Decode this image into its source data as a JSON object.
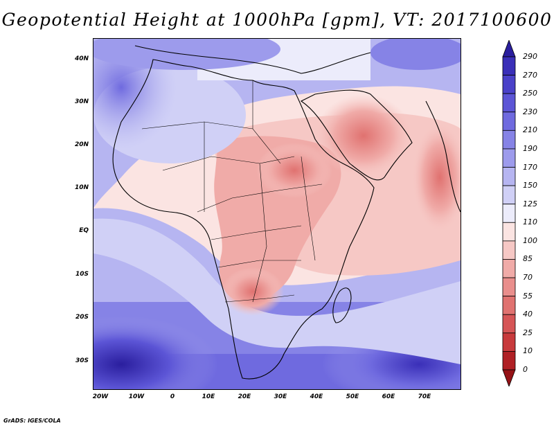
{
  "title": "Geopotential Height at 1000hPa [gpm], VT: 2017100600",
  "footer": "GrADS: IGES/COLA",
  "map": {
    "lon_labels": [
      "20W",
      "10W",
      "0",
      "10E",
      "20E",
      "30E",
      "40E",
      "50E",
      "60E",
      "70E"
    ],
    "lat_labels": [
      "40N",
      "30N",
      "20N",
      "10N",
      "EQ",
      "10S",
      "20S",
      "30S"
    ],
    "lon_range": [
      -22,
      80
    ],
    "lat_range": [
      -37,
      45
    ]
  },
  "colorbar": {
    "levels": [
      "290",
      "270",
      "250",
      "230",
      "210",
      "190",
      "170",
      "150",
      "125",
      "110",
      "100",
      "85",
      "70",
      "55",
      "40",
      "25",
      "10",
      "0"
    ],
    "colors": [
      "#2a1e9e",
      "#3a2fb8",
      "#4a41c9",
      "#5c55d6",
      "#6f6adf",
      "#8683e6",
      "#9d9bec",
      "#b6b5f1",
      "#d0d0f6",
      "#ececfb",
      "#fbe4e2",
      "#f6c8c5",
      "#f0aba8",
      "#e98e8c",
      "#e07270",
      "#d65556",
      "#c83a3c",
      "#b02025",
      "#951216"
    ]
  }
}
